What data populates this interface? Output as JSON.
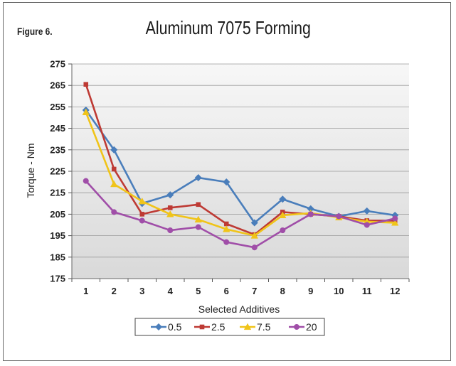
{
  "figure_label": "Figure 6.",
  "chart_data": {
    "type": "line",
    "title": "Aluminum 7075 Forming",
    "xlabel": "Selected Additives",
    "ylabel": "Torque - Nm",
    "x": [
      1,
      2,
      3,
      4,
      5,
      6,
      7,
      8,
      9,
      10,
      11,
      12
    ],
    "ylim": [
      175,
      275
    ],
    "yticks": [
      175,
      185,
      195,
      205,
      215,
      225,
      235,
      245,
      255,
      265,
      275
    ],
    "grid": true,
    "legend_position": "bottom",
    "series": [
      {
        "name": "0.5",
        "color": "#4a7ebb",
        "marker": "diamond",
        "values": [
          253.5,
          235,
          210,
          214,
          222,
          220,
          201,
          212,
          207.5,
          204,
          206.5,
          204.5
        ]
      },
      {
        "name": "2.5",
        "color": "#be3a34",
        "marker": "square",
        "values": [
          265.5,
          226,
          205,
          208,
          209.5,
          200.5,
          195.5,
          206,
          205,
          204,
          202,
          202
        ]
      },
      {
        "name": "7.5",
        "color": "#f0c419",
        "marker": "triangle",
        "values": [
          252.5,
          219,
          211,
          205,
          202.5,
          198,
          195,
          204.5,
          205.5,
          203.5,
          201.5,
          201
        ]
      },
      {
        "name": "20",
        "color": "#a04ea8",
        "marker": "circle",
        "values": [
          220.5,
          206,
          202,
          197.5,
          199,
          192,
          189.5,
          197.5,
          205,
          204,
          200,
          203
        ]
      }
    ]
  }
}
